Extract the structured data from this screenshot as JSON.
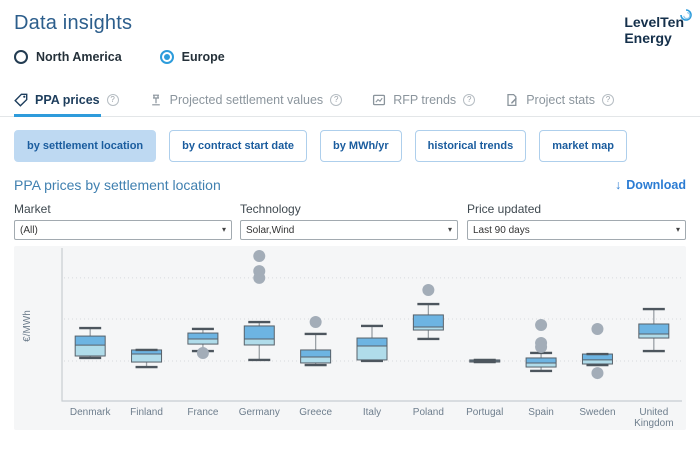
{
  "header": {
    "title": "Data insights",
    "logo_line1": "LevelTen",
    "logo_line2": "Energy"
  },
  "region_toggle": {
    "options": [
      {
        "label": "North America",
        "selected": false
      },
      {
        "label": "Europe",
        "selected": true
      }
    ]
  },
  "tabs": [
    {
      "label": "PPA prices",
      "icon": "price-tag-icon",
      "active": true
    },
    {
      "label": "Projected settlement values",
      "icon": "gavel-icon",
      "active": false
    },
    {
      "label": "RFP trends",
      "icon": "document-chart-icon",
      "active": false
    },
    {
      "label": "Project stats",
      "icon": "document-pencil-icon",
      "active": false
    }
  ],
  "subtabs": [
    {
      "label": "by settlement location",
      "active": true
    },
    {
      "label": "by contract start date",
      "active": false
    },
    {
      "label": "by MWh/yr",
      "active": false
    },
    {
      "label": "historical trends",
      "active": false
    },
    {
      "label": "market map",
      "active": false
    }
  ],
  "section": {
    "title": "PPA prices by settlement location",
    "download_label": "Download"
  },
  "filters": {
    "market": {
      "label": "Market",
      "value": "(All)"
    },
    "technology": {
      "label": "Technology",
      "value": "Solar,Wind"
    },
    "price_updated": {
      "label": "Price updated",
      "value": "Last 90 days"
    }
  },
  "misc": {
    "help_glyph": "?",
    "dropdown_glyph": "▾",
    "download_glyph": "↓"
  },
  "chart_data": {
    "type": "box",
    "title": "PPA prices by settlement location",
    "ylabel": "€/MWh",
    "xlabel": "",
    "y_axis_tick_labels": "none shown",
    "value_units": "relative scale 0-100 of plot height (chart shows no numeric ticks)",
    "grid": "dotted horizontal gridlines",
    "gridline_values": [
      81.5,
      54.3,
      26.5
    ],
    "categories": [
      "Denmark",
      "Finland",
      "France",
      "Germany",
      "Greece",
      "Italy",
      "Poland",
      "Portugal",
      "Spain",
      "Sweden",
      "United Kingdom"
    ],
    "series": [
      {
        "name": "Denmark",
        "whisker_high": 48.3,
        "q3": 43.0,
        "median": 37.0,
        "q1": 29.8,
        "whisker_low": 28.5,
        "outliers": []
      },
      {
        "name": "Finland",
        "whisker_high": 33.8,
        "q3": 33.8,
        "median": 31.1,
        "q1": 25.8,
        "whisker_low": 22.5,
        "outliers": []
      },
      {
        "name": "France",
        "whisker_high": 47.7,
        "q3": 45.0,
        "median": 41.1,
        "q1": 37.7,
        "whisker_low": 33.1,
        "outliers": [
          31.8
        ]
      },
      {
        "name": "Germany",
        "whisker_high": 52.3,
        "q3": 49.7,
        "median": 41.1,
        "q1": 37.1,
        "whisker_low": 27.2,
        "outliers": [
          96.0,
          86.0,
          81.5
        ]
      },
      {
        "name": "Greece",
        "whisker_high": 44.4,
        "q3": 33.8,
        "median": 29.1,
        "q1": 25.2,
        "whisker_low": 23.8,
        "outliers": [
          52.3
        ]
      },
      {
        "name": "Italy",
        "whisker_high": 49.7,
        "q3": 41.7,
        "median": 36.4,
        "q1": 27.2,
        "whisker_low": 26.5,
        "outliers": []
      },
      {
        "name": "Poland",
        "whisker_high": 64.2,
        "q3": 57.0,
        "median": 49.0,
        "q1": 47.0,
        "whisker_low": 41.1,
        "outliers": [
          73.5
        ]
      },
      {
        "name": "Portugal",
        "whisker_high": 27.2,
        "q3": 27.2,
        "median": 26.5,
        "q1": 25.8,
        "whisker_low": 25.8,
        "outliers": []
      },
      {
        "name": "Spain",
        "whisker_high": 31.8,
        "q3": 28.5,
        "median": 25.2,
        "q1": 22.5,
        "whisker_low": 19.9,
        "outliers": [
          50.3,
          38.4,
          35.8
        ]
      },
      {
        "name": "Sweden",
        "whisker_high": 31.1,
        "q3": 31.1,
        "median": 27.2,
        "q1": 24.5,
        "whisker_low": 23.8,
        "outliers": [
          47.7,
          18.5
        ]
      },
      {
        "name": "United Kingdom",
        "whisker_high": 60.9,
        "q3": 51.0,
        "median": 44.4,
        "q1": 41.7,
        "whisker_low": 33.1,
        "outliers": []
      }
    ],
    "colors": {
      "box_upper": "#6db4e2",
      "box_lower": "#b0dcea",
      "box_border": "#57616a",
      "cap": "#4d565e",
      "stem": "#9aa1a6",
      "outlier": "#a3adb8",
      "grid": "#d7dadd",
      "axis": "#c8cdd1",
      "tick_text": "#6e7e8d",
      "panel_bg": "#f5f6f7",
      "accent_blue": "#2d9cdb"
    }
  }
}
